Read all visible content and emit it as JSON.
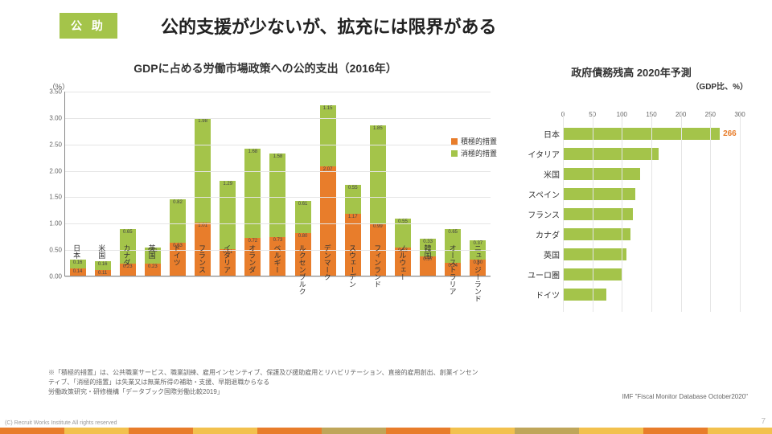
{
  "header": {
    "badge": "公 助",
    "title": "公的支援が少ないが、拡充には限界がある"
  },
  "leftChart": {
    "title": "GDPに占める労働市場政策への公的支出（2016年）",
    "unit": "（%）",
    "ylim": [
      0,
      3.5
    ],
    "ytick_step": 0.5,
    "colors": {
      "active": "#e87d2b",
      "passive": "#a4c44a"
    },
    "legend": {
      "active": "積極的措置",
      "passive": "消極的措置"
    },
    "categories": [
      "日本",
      "米国",
      "カナダ",
      "英国",
      "ドイツ",
      "フランス",
      "イタリア",
      "オランダ",
      "ベルギー",
      "ルクセンブルク",
      "デンマーク",
      "スウェーデン",
      "フィンランド",
      "ノルウェー",
      "韓国",
      "オーストラリア",
      "ニュージーランド"
    ],
    "active": [
      0.14,
      0.11,
      0.23,
      0.23,
      0.63,
      1.01,
      0.51,
      0.72,
      0.73,
      0.8,
      2.07,
      1.17,
      0.99,
      0.53,
      0.37,
      0.24,
      0.3
    ],
    "passive": [
      0.16,
      0.16,
      0.65,
      0.31,
      0.82,
      1.98,
      1.29,
      1.68,
      1.58,
      0.61,
      1.15,
      0.55,
      1.85,
      0.55,
      0.33,
      0.65,
      0.37
    ]
  },
  "footnote": "※「積極的措置」は、公共職業サービス、職業訓練、雇用インセンティブ、保護及び援助雇用とリハビリテーション、直接的雇用創出、創業インセンティブ、「消極的措置」は失業又は無業所得の補助・支援、早期退職からなる\n労働政策研究・研修機構「データブック国際労働比較2019」",
  "rightChart": {
    "title": "政府債務残高 2020年予測",
    "subtitle": "（GDP比、%）",
    "xlim": [
      0,
      300
    ],
    "xtick_step": 50,
    "bar_color": "#a4c44a",
    "highlight_text": "266",
    "categories": [
      "日本",
      "イタリア",
      "米国",
      "スペイン",
      "フランス",
      "カナダ",
      "英国",
      "ユーロ圏",
      "ドイツ"
    ],
    "values": [
      266,
      162,
      131,
      123,
      119,
      115,
      108,
      101,
      73
    ]
  },
  "sourceRight": "IMF \"Fiscal Monitor Database October2020\"",
  "footer": {
    "copyright": "(C) Recruit Works Institute All rights reserved",
    "pagenum": "7",
    "stripe_colors": [
      "#e87d2b",
      "#f2c14e",
      "#e87d2b",
      "#f2c14e",
      "#e87d2b",
      "#bfa65a",
      "#e87d2b",
      "#f2c14e",
      "#bfa65a",
      "#f2c14e",
      "#e87d2b",
      "#f2c14e"
    ]
  }
}
